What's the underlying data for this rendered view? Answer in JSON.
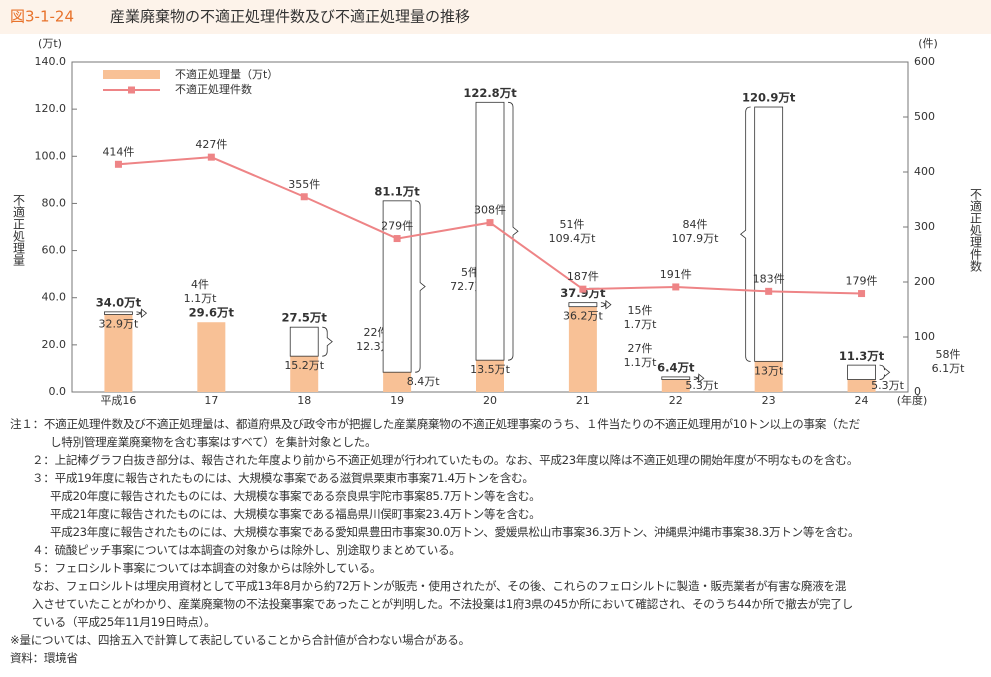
{
  "figure_number": "図3-1-24",
  "chart_data": {
    "type": "bar-line",
    "title": "産業廃棄物の不適正処理件数及び不適正処理量の推移",
    "y_unit": "(万t)",
    "y2_unit": "(件)",
    "ylabel": "不適正処理量",
    "y2label": "不適正処理件数",
    "x_unit": "(年度)",
    "categories": [
      "平成16",
      "17",
      "18",
      "19",
      "20",
      "21",
      "22",
      "23",
      "24"
    ],
    "ylim": [
      0,
      140
    ],
    "yticks": [
      {
        "value": 0,
        "label": "0.0"
      },
      {
        "value": 20,
        "label": "20.0"
      },
      {
        "value": 40,
        "label": "40.0"
      },
      {
        "value": 60,
        "label": "60.0"
      },
      {
        "value": 80,
        "label": "80.0"
      },
      {
        "value": 100,
        "label": "100.0"
      },
      {
        "value": 120,
        "label": "120.0"
      },
      {
        "value": 140,
        "label": "140.0"
      }
    ],
    "y2lim": [
      0,
      600
    ],
    "y2ticks": [
      0,
      100,
      200,
      300,
      400,
      500,
      600
    ],
    "totals": [
      34.0,
      29.6,
      27.5,
      81.1,
      122.8,
      37.9,
      6.4,
      120.9,
      11.3
    ],
    "total_labels": [
      "34.0万t",
      "29.6万t",
      "27.5万t",
      "81.1万t",
      "122.8万t",
      "37.9万t",
      "6.4万t",
      "120.9万t",
      "11.3万t"
    ],
    "series": [
      {
        "name": "不適正処理量（万t）",
        "color": "#f8c196",
        "values": [
          32.9,
          29.6,
          15.2,
          8.4,
          13.5,
          36.2,
          5.3,
          13,
          5.3
        ],
        "value_labels": [
          "32.9万t",
          null,
          "15.2万t",
          "8.4万t",
          "13.5万t",
          "36.2万t",
          "5.3万t",
          "13万t",
          "5.3万t"
        ]
      },
      {
        "color": "#ffffff",
        "values": [
          1.1,
          null,
          12.3,
          72.7,
          109.4,
          1.7,
          1.1,
          107.9,
          6.1
        ],
        "value_labels": [
          "1.1万t",
          null,
          "12.3万t",
          "72.7万t",
          "109.4万t",
          "1.7万t",
          "1.1万t",
          "107.9万t",
          "6.1万t"
        ],
        "counts": [
          4,
          null,
          22,
          5,
          51,
          15,
          27,
          84,
          58
        ],
        "count_labels": [
          "4件",
          null,
          "22件",
          "5件",
          "51件",
          "15件",
          "27件",
          "84件",
          "58件"
        ]
      },
      {
        "name": "不適正処理件数",
        "color": "#ee8486",
        "axis": "y2",
        "values": [
          414,
          427,
          355,
          279,
          308,
          187,
          191,
          183,
          179
        ],
        "value_labels": [
          "414件",
          "427件",
          "355件",
          "279件",
          "308件",
          "187件",
          "191件",
          "183件",
          "179件"
        ]
      }
    ]
  },
  "notes": [
    "注１：不適正処理件数及び不適正処理量は、都道府県及び政令市が把握した産業廃棄物の不適正処理事案のうち、１件当たりの不適正処理用が10トン以上の事案（ただ",
    "し特別管理産業廃棄物を含む事案はすべて）を集計対象とした。",
    "２：上記棒グラフ白抜き部分は、報告された年度より前から不適正処理が行われていたもの。なお、平成23年度以降は不適正処理の開始年度が不明なものを含む。",
    "３：平成19年度に報告されたものには、大規模な事案である滋賀県栗東市事案71.4万トンを含む。",
    "平成20年度に報告されたものには、大規模な事案である奈良県宇陀市事案85.7万トン等を含む。",
    "平成21年度に報告されたものには、大規模な事案である福島県川俣町事案23.4万トン等を含む。",
    "平成23年度に報告されたものには、大規模な事案である愛知県豊田市事案30.0万トン、愛媛県松山市事案36.3万トン、沖縄県沖縄市事案38.3万トン等を含む。",
    "４：硫酸ピッチ事案については本調査の対象からは除外し、別途取りまとめている。",
    "５：フェロシルト事案については本調査の対象からは除外している。",
    "なお、フェロシルトは埋戻用資材として平成13年8月から約72万トンが販売・使用されたが、その後、これらのフェロシルトに製造・販売業者が有害な廃液を混",
    "入させていたことがわかり、産業廃棄物の不法投棄事案であったことが判明した。不法投棄は1府3県の45か所において確認され、そのうち44か所で撤去が完了し",
    "ている（平成25年11月19日時点）。",
    "※量については、四捨五入で計算して表記していることから合計値が合わない場合がある。",
    "資料：環境省"
  ]
}
